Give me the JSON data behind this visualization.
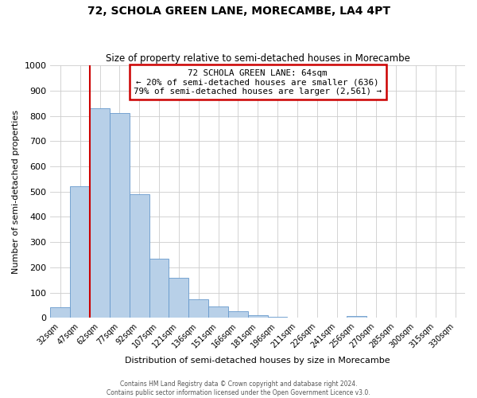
{
  "title": "72, SCHOLA GREEN LANE, MORECAMBE, LA4 4PT",
  "subtitle": "Size of property relative to semi-detached houses in Morecambe",
  "xlabel": "Distribution of semi-detached houses by size in Morecambe",
  "ylabel": "Number of semi-detached properties",
  "bar_labels": [
    "32sqm",
    "47sqm",
    "62sqm",
    "77sqm",
    "92sqm",
    "107sqm",
    "121sqm",
    "136sqm",
    "151sqm",
    "166sqm",
    "181sqm",
    "196sqm",
    "211sqm",
    "226sqm",
    "241sqm",
    "256sqm",
    "270sqm",
    "285sqm",
    "300sqm",
    "315sqm",
    "330sqm"
  ],
  "bar_values": [
    43,
    520,
    830,
    810,
    490,
    235,
    160,
    75,
    45,
    25,
    10,
    5,
    0,
    0,
    0,
    8,
    0,
    0,
    0,
    0,
    0
  ],
  "bar_color": "#b8d0e8",
  "bar_edge_color": "#6699cc",
  "vline_index": 2,
  "property_label": "72 SCHOLA GREEN LANE: 64sqm",
  "pct_smaller": 20,
  "pct_smaller_count": 636,
  "pct_larger": 79,
  "pct_larger_count": 2561,
  "vline_color": "#cc0000",
  "annotation_box_color": "#cc0000",
  "ylim": [
    0,
    1000
  ],
  "yticks": [
    0,
    100,
    200,
    300,
    400,
    500,
    600,
    700,
    800,
    900,
    1000
  ],
  "footer1": "Contains HM Land Registry data © Crown copyright and database right 2024.",
  "footer2": "Contains public sector information licensed under the Open Government Licence v3.0.",
  "background_color": "#ffffff",
  "grid_color": "#cccccc"
}
